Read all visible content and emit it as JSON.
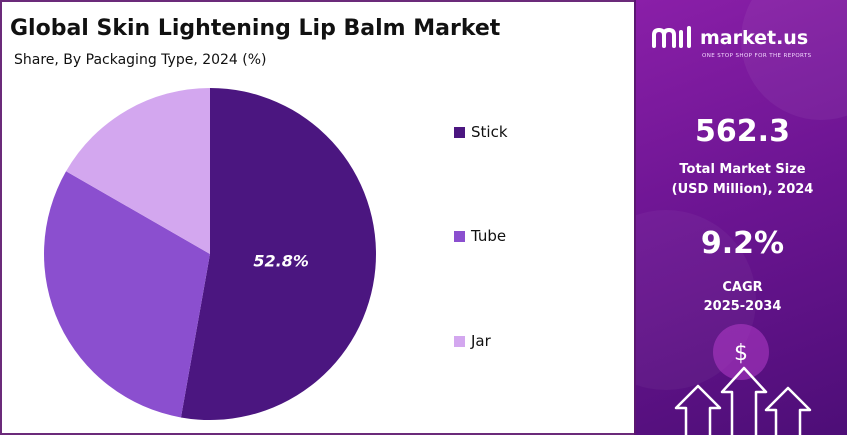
{
  "header": {
    "title": "Global Skin Lightening Lip Balm Market",
    "subtitle": "Share, By Packaging Type, 2024 (%)"
  },
  "chart_data": {
    "type": "pie",
    "categories": [
      "Stick",
      "Tube",
      "Jar"
    ],
    "values": [
      52.8,
      30.5,
      16.7
    ],
    "colors": [
      "#4b1680",
      "#8b4fcf",
      "#d3a7ef"
    ],
    "data_labels": [
      "52.8%",
      "",
      ""
    ],
    "legend_position": "right"
  },
  "legend": {
    "items": [
      {
        "label": "Stick",
        "color": "#4b1680"
      },
      {
        "label": "Tube",
        "color": "#8b4fcf"
      },
      {
        "label": "Jar",
        "color": "#d3a7ef"
      }
    ]
  },
  "brand": {
    "name": "market.us",
    "tagline": "ONE STOP SHOP FOR THE REPORTS",
    "logo_icon": "market-us-logo-icon"
  },
  "stats": {
    "market_size_value": "562.3",
    "market_size_label_line1": "Total Market Size",
    "market_size_label_line2": "(USD Million), 2024",
    "cagr_value": "9.2%",
    "cagr_label_line1": "CAGR",
    "cagr_label_line2": "2025-2034"
  },
  "decoration": {
    "dollar_symbol": "$"
  }
}
